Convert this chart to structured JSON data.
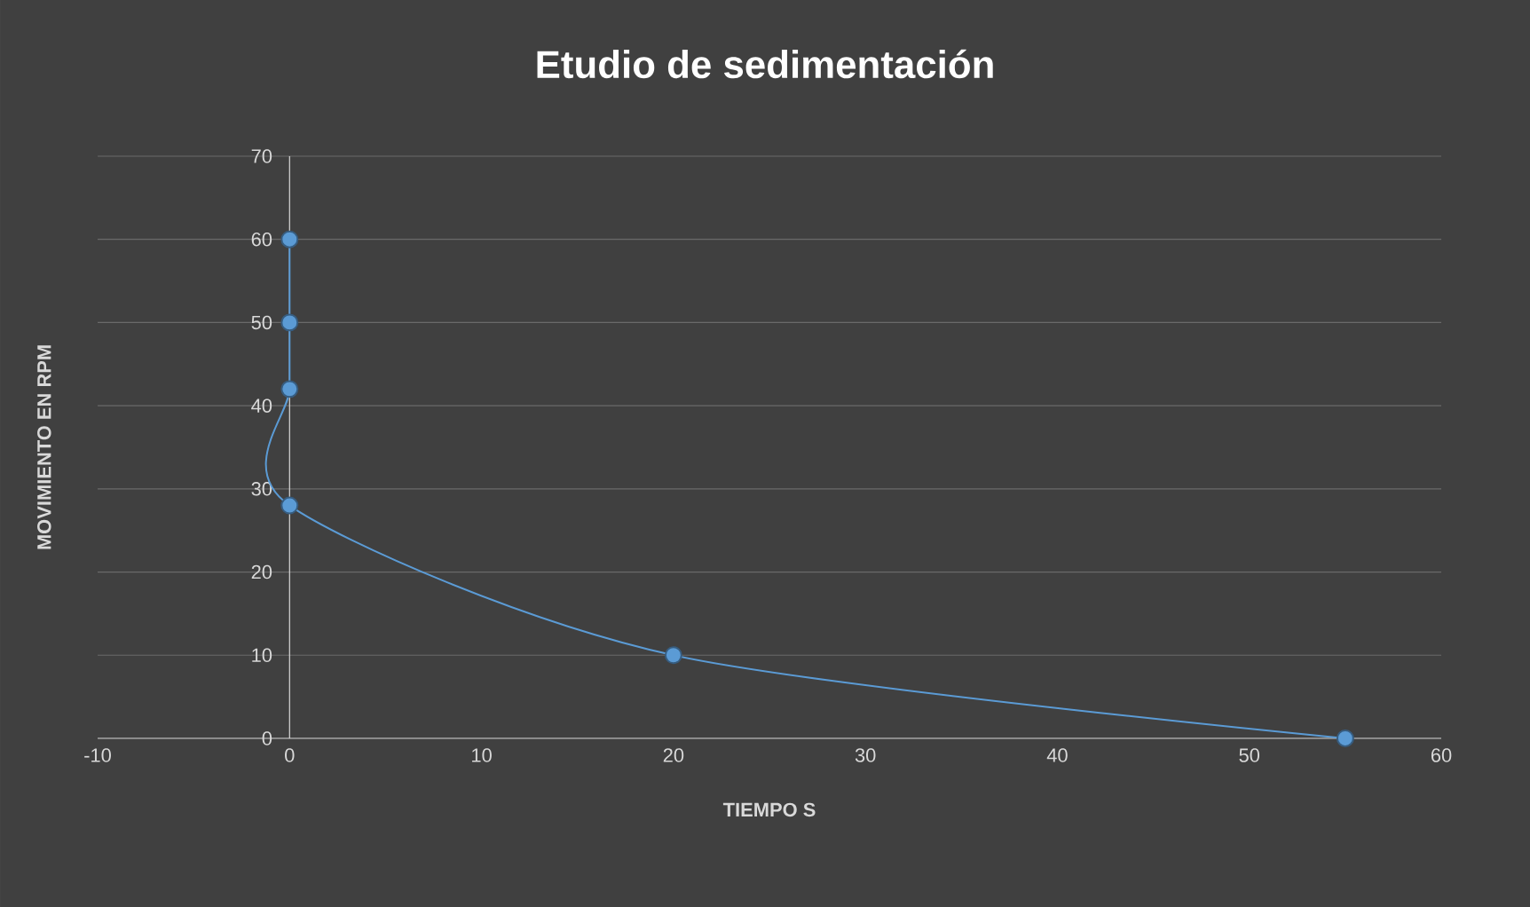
{
  "chart_data": {
    "type": "line",
    "title": "Etudio de sedimentación",
    "xlabel": "TIEMPO S",
    "ylabel": "MOVIMIENTO EN RPM",
    "x": [
      0,
      0,
      0,
      0,
      20,
      55
    ],
    "series": [
      {
        "color": "#5b9bd5",
        "values": [
          60,
          50,
          42,
          28,
          10,
          0
        ]
      }
    ],
    "xlim": [
      -10,
      60
    ],
    "xticks": [
      -10,
      0,
      10,
      20,
      30,
      40,
      50,
      60
    ],
    "ylim": [
      0,
      70
    ],
    "yticks": [
      0,
      10,
      20,
      30,
      40,
      50,
      60,
      70
    ],
    "grid": "y",
    "marker": "circle",
    "line_style": "solid"
  }
}
